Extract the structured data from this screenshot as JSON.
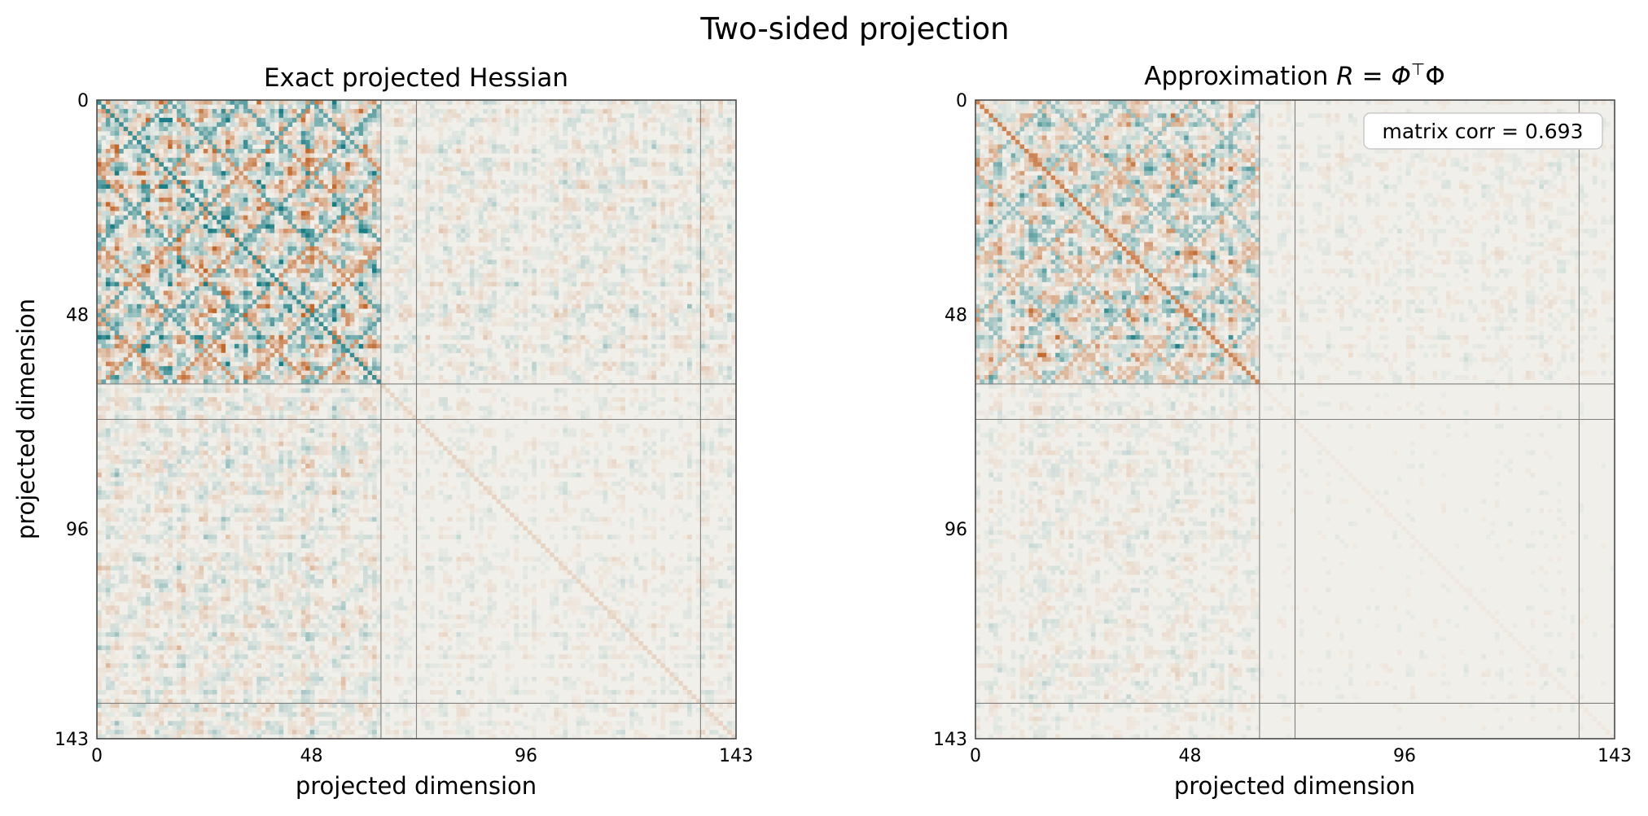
{
  "figure": {
    "suptitle": "Two-sided projection"
  },
  "chart_data": [
    {
      "type": "heatmap",
      "title": "Exact projected Hessian",
      "xlabel": "projected dimension",
      "ylabel": "projected dimension",
      "size": 144,
      "xticks": [
        "0",
        "48",
        "96",
        "143"
      ],
      "yticks": [
        "0",
        "48",
        "96",
        "143"
      ],
      "xlim": [
        0,
        143
      ],
      "ylim": [
        143,
        0
      ],
      "grid": false,
      "block_boundaries": [
        64,
        72,
        136
      ],
      "colormap": {
        "negative": "#1c7d84",
        "zero": "#f1efe9",
        "positive": "#c1682d"
      },
      "blocks": [
        {
          "rows": [
            0,
            64
          ],
          "cols": [
            0,
            64
          ],
          "intensity": 0.95,
          "diag": -0.85
        },
        {
          "rows": [
            0,
            64
          ],
          "cols": [
            64,
            144
          ],
          "intensity": 0.22,
          "diag": 0
        },
        {
          "rows": [
            64,
            144
          ],
          "cols": [
            0,
            64
          ],
          "intensity": 0.28,
          "diag": 0
        },
        {
          "rows": [
            64,
            144
          ],
          "cols": [
            64,
            144
          ],
          "intensity": 0.12,
          "diag": 0.2
        }
      ],
      "annotation": ""
    },
    {
      "type": "heatmap",
      "title_prefix": "Approximation ",
      "title_math": "R = Φ",
      "title_sup": "⊤",
      "title_suffix": "Φ",
      "xlabel": "projected dimension",
      "ylabel": "",
      "size": 144,
      "xticks": [
        "0",
        "48",
        "96",
        "143"
      ],
      "yticks": [
        "0",
        "48",
        "96",
        "143"
      ],
      "xlim": [
        0,
        143
      ],
      "ylim": [
        143,
        0
      ],
      "grid": false,
      "block_boundaries": [
        64,
        72,
        136
      ],
      "colormap": {
        "negative": "#1c7d84",
        "zero": "#f1efe9",
        "positive": "#c1682d"
      },
      "blocks": [
        {
          "rows": [
            0,
            64
          ],
          "cols": [
            0,
            64
          ],
          "intensity": 0.6,
          "diag": 0.8
        },
        {
          "rows": [
            0,
            64
          ],
          "cols": [
            64,
            144
          ],
          "intensity": 0.1,
          "diag": 0
        },
        {
          "rows": [
            64,
            144
          ],
          "cols": [
            0,
            64
          ],
          "intensity": 0.14,
          "diag": 0
        },
        {
          "rows": [
            64,
            144
          ],
          "cols": [
            64,
            144
          ],
          "intensity": 0.05,
          "diag": 0.05
        }
      ],
      "annotation": "matrix corr = 0.693"
    }
  ]
}
